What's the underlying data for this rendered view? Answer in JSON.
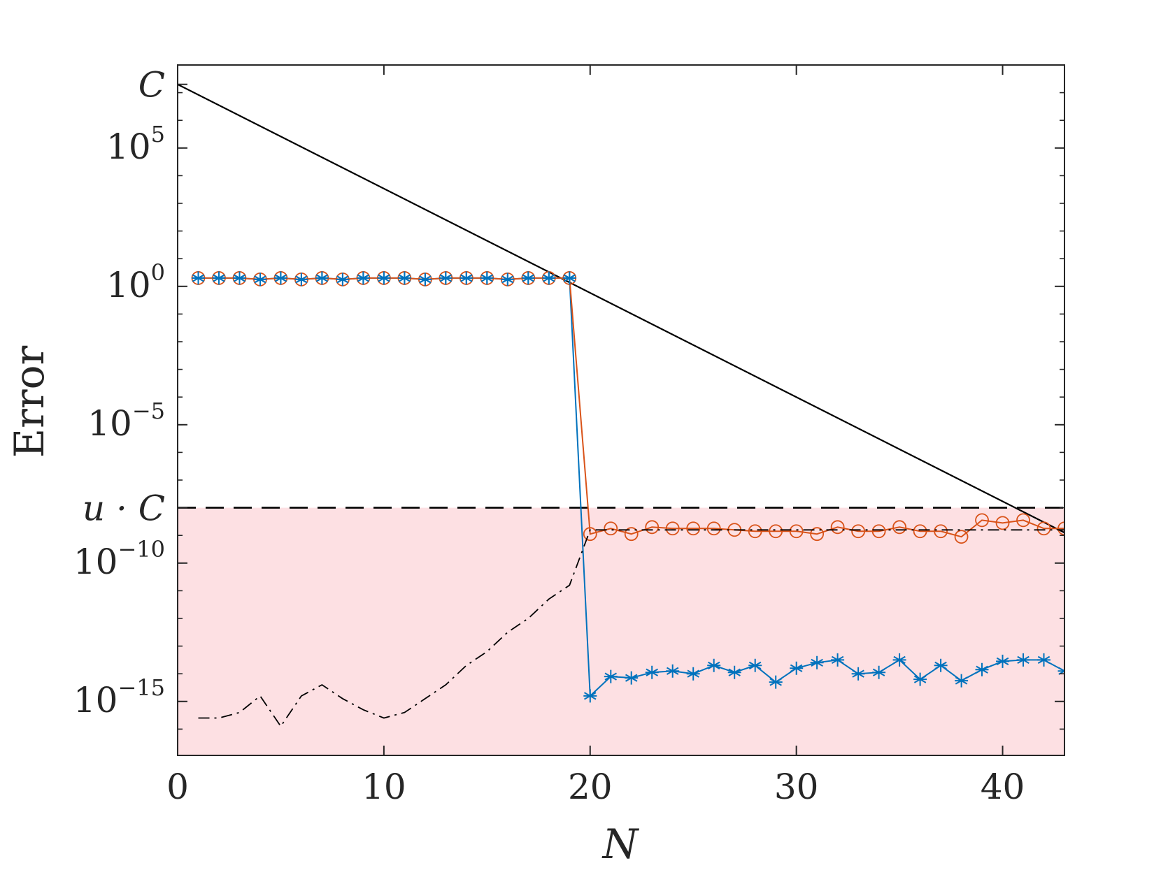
{
  "chart_data": {
    "type": "line",
    "title": "",
    "xlabel": "N",
    "ylabel": "Error",
    "xlim": [
      0,
      43
    ],
    "ylim_log10": [
      -16.95,
      8.0
    ],
    "y_scale": "log",
    "grid": false,
    "box": true,
    "x_ticks": [
      {
        "value": 0,
        "label": "0"
      },
      {
        "value": 10,
        "label": "10"
      },
      {
        "value": 20,
        "label": "20"
      },
      {
        "value": 30,
        "label": "30"
      },
      {
        "value": 40,
        "label": "40"
      }
    ],
    "y_ticks": [
      {
        "log10": 5,
        "base": "10",
        "exp": "5"
      },
      {
        "log10": 0,
        "base": "10",
        "exp": "0"
      },
      {
        "log10": -5,
        "base": "10",
        "exp": "−5"
      },
      {
        "log10": -10,
        "base": "10",
        "exp": "−10"
      },
      {
        "log10": -15,
        "base": "10",
        "exp": "−15"
      }
    ],
    "special_y_labels": [
      {
        "log10": 7.3,
        "text": "C"
      },
      {
        "log10": -8.0,
        "text": "u · C"
      }
    ],
    "shaded_region": {
      "from_log10": -16.95,
      "to_log10": -8.0,
      "color": "#fde0e3"
    },
    "reference_lines": {
      "bound": {
        "x": [
          0,
          43
        ],
        "log10": [
          7.3,
          -8.9
        ],
        "color": "#000000",
        "style": "solid"
      },
      "threshold": {
        "log10": -8.0,
        "color": "#000000",
        "style": "dashed"
      }
    },
    "series": [
      {
        "marker": "star",
        "color": "#0072bd",
        "x": [
          1,
          2,
          3,
          4,
          5,
          6,
          7,
          8,
          9,
          10,
          11,
          12,
          13,
          14,
          15,
          16,
          17,
          18,
          19,
          20,
          21,
          22,
          23,
          24,
          25,
          26,
          27,
          28,
          29,
          30,
          31,
          32,
          33,
          34,
          35,
          36,
          37,
          38,
          39,
          40,
          41,
          42,
          43
        ],
        "log10": [
          0.3,
          0.3,
          0.3,
          0.25,
          0.3,
          0.25,
          0.3,
          0.25,
          0.3,
          0.3,
          0.3,
          0.25,
          0.3,
          0.3,
          0.3,
          0.25,
          0.3,
          0.3,
          0.3,
          -14.8,
          -14.1,
          -14.15,
          -13.95,
          -13.9,
          -14.0,
          -13.7,
          -13.95,
          -13.7,
          -14.3,
          -13.8,
          -13.6,
          -13.5,
          -14.0,
          -13.95,
          -13.5,
          -14.2,
          -13.7,
          -14.25,
          -13.85,
          -13.55,
          -13.5,
          -13.5,
          -13.9
        ],
        "log10_units": "log10(Error)"
      },
      {
        "marker": "circle",
        "color": "#d95319",
        "x": [
          1,
          2,
          3,
          4,
          5,
          6,
          7,
          8,
          9,
          10,
          11,
          12,
          13,
          14,
          15,
          16,
          17,
          18,
          19,
          20,
          21,
          22,
          23,
          24,
          25,
          26,
          27,
          28,
          29,
          30,
          31,
          32,
          33,
          34,
          35,
          36,
          37,
          38,
          39,
          40,
          41,
          42,
          43
        ],
        "log10": [
          0.3,
          0.3,
          0.3,
          0.25,
          0.3,
          0.25,
          0.3,
          0.25,
          0.3,
          0.3,
          0.3,
          0.25,
          0.3,
          0.3,
          0.3,
          0.25,
          0.3,
          0.3,
          0.3,
          -8.95,
          -8.75,
          -8.95,
          -8.7,
          -8.75,
          -8.75,
          -8.75,
          -8.8,
          -8.85,
          -8.85,
          -8.85,
          -8.95,
          -8.7,
          -8.85,
          -8.85,
          -8.7,
          -8.85,
          -8.85,
          -9.05,
          -8.45,
          -8.55,
          -8.45,
          -8.75,
          -8.75
        ],
        "log10_units": "log10(Error)"
      },
      {
        "marker": "none",
        "color": "#000000",
        "style": "dash-dot",
        "x": [
          1,
          2,
          3,
          4,
          5,
          6,
          7,
          8,
          9,
          10,
          11,
          12,
          13,
          14,
          15,
          16,
          17,
          18,
          19,
          20,
          21,
          22,
          23,
          24,
          25,
          26,
          27,
          28,
          29,
          30,
          31,
          32,
          33,
          34,
          35,
          36,
          37,
          38,
          39,
          40,
          41,
          42,
          43
        ],
        "log10": [
          -15.6,
          -15.6,
          -15.4,
          -14.8,
          -15.9,
          -14.8,
          -14.4,
          -14.9,
          -15.3,
          -15.6,
          -15.4,
          -14.9,
          -14.4,
          -13.7,
          -13.2,
          -12.5,
          -12.0,
          -11.3,
          -10.8,
          -8.8,
          -8.8,
          -8.8,
          -8.8,
          -8.8,
          -8.8,
          -8.8,
          -8.8,
          -8.8,
          -8.8,
          -8.8,
          -8.8,
          -8.8,
          -8.8,
          -8.8,
          -8.8,
          -8.8,
          -8.8,
          -8.8,
          -8.8,
          -8.8,
          -8.8,
          -8.8,
          -8.8
        ],
        "log10_units": "log10(Error)"
      }
    ]
  }
}
